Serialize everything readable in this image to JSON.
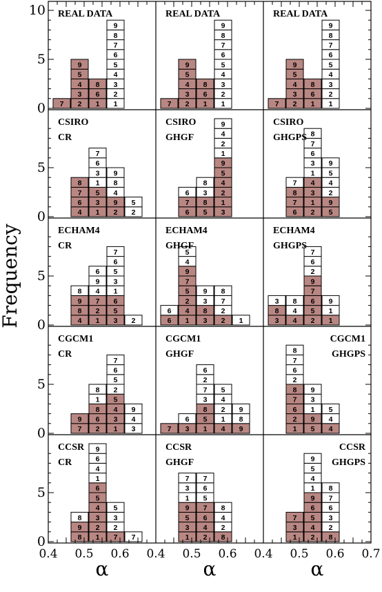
{
  "figure": {
    "ylabel": "Frequency",
    "xlabel": "α",
    "colors": {
      "shaded": "#b98783",
      "unshaded": "#ffffff",
      "stroke": "#000000"
    }
  },
  "chart_data": {
    "type": "histogram-grid",
    "xlim": [
      0.4,
      0.7
    ],
    "x_ticks": [
      "0.4",
      "0.5",
      "0.6",
      "0.4",
      "0.5",
      "0.6",
      "0.4",
      "0.5",
      "0.6",
      "0.7"
    ],
    "y_ticks_top": [
      "10",
      "5",
      "0"
    ],
    "y_ticks": [
      "5",
      "0"
    ],
    "bin_centers": [
      0.4375,
      0.4875,
      0.5375,
      0.5875,
      0.6375,
      0.6875
    ],
    "panels": [
      {
        "row": 0,
        "col": 0,
        "label": [
          "REAL DATA"
        ],
        "label_pos": "top-left",
        "columns": [
          {
            "bin": 0,
            "shaded": [
              "7"
            ],
            "unshaded": []
          },
          {
            "bin": 1,
            "shaded": [
              "2",
              "3",
              "4",
              "5",
              "9"
            ],
            "unshaded": []
          },
          {
            "bin": 2,
            "shaded": [
              "1",
              "6",
              "8"
            ],
            "unshaded": []
          },
          {
            "bin": 3,
            "shaded": [],
            "unshaded": [
              "1",
              "2",
              "3",
              "4",
              "5",
              "6",
              "7",
              "8",
              "9"
            ]
          }
        ]
      },
      {
        "row": 0,
        "col": 1,
        "label": [
          "REAL DATA"
        ],
        "label_pos": "top-left",
        "columns": [
          {
            "bin": 0,
            "shaded": [
              "7"
            ],
            "unshaded": []
          },
          {
            "bin": 1,
            "shaded": [
              "2",
              "3",
              "4",
              "5",
              "9"
            ],
            "unshaded": []
          },
          {
            "bin": 2,
            "shaded": [
              "1",
              "6",
              "8"
            ],
            "unshaded": []
          },
          {
            "bin": 3,
            "shaded": [],
            "unshaded": [
              "1",
              "2",
              "3",
              "4",
              "5",
              "6",
              "7",
              "8",
              "9"
            ]
          }
        ]
      },
      {
        "row": 0,
        "col": 2,
        "label": [
          "REAL DATA"
        ],
        "label_pos": "top-left",
        "columns": [
          {
            "bin": 0,
            "shaded": [
              "7"
            ],
            "unshaded": []
          },
          {
            "bin": 1,
            "shaded": [
              "2",
              "3",
              "4",
              "5",
              "9"
            ],
            "unshaded": []
          },
          {
            "bin": 2,
            "shaded": [
              "1",
              "6",
              "8"
            ],
            "unshaded": []
          },
          {
            "bin": 3,
            "shaded": [],
            "unshaded": [
              "1",
              "2",
              "3",
              "4",
              "5",
              "6",
              "7",
              "8",
              "9"
            ]
          }
        ]
      },
      {
        "row": 1,
        "col": 0,
        "label": [
          "CSIRO",
          "CR"
        ],
        "label_pos": "top-left",
        "columns": [
          {
            "bin": 1,
            "shaded": [
              "4",
              "6",
              "7",
              "8"
            ],
            "unshaded": []
          },
          {
            "bin": 2,
            "shaded": [
              "1",
              "3",
              "5"
            ],
            "unshaded": [
              "1",
              "3",
              "6",
              "7"
            ]
          },
          {
            "bin": 3,
            "shaded": [
              "2",
              "9"
            ],
            "unshaded": [
              "4",
              "8",
              "9"
            ]
          },
          {
            "bin": 4,
            "shaded": [],
            "unshaded": [
              "2",
              "5"
            ]
          }
        ]
      },
      {
        "row": 1,
        "col": 1,
        "label": [
          "CSIRO",
          "GHGF"
        ],
        "label_pos": "top-left",
        "columns": [
          {
            "bin": 1,
            "shaded": [
              "6",
              "7"
            ],
            "unshaded": [
              "6"
            ]
          },
          {
            "bin": 2,
            "shaded": [
              "5",
              "8"
            ],
            "unshaded": [
              "3",
              "8"
            ]
          },
          {
            "bin": 3,
            "shaded": [
              "3",
              "1",
              "2",
              "4",
              "5",
              "9"
            ],
            "unshaded": [
              "1",
              "2",
              "4",
              "9"
            ]
          }
        ]
      },
      {
        "row": 1,
        "col": 2,
        "label": [
          "CSIRO",
          "GHGPS"
        ],
        "label_pos": "top-left",
        "columns": [
          {
            "bin": 1,
            "shaded": [
              "6",
              "7",
              "8"
            ],
            "unshaded": [
              "7"
            ]
          },
          {
            "bin": 2,
            "shaded": [
              "2",
              "1",
              "3",
              "4"
            ],
            "unshaded": [
              "1",
              "3",
              "6",
              "7",
              "8"
            ]
          },
          {
            "bin": 3,
            "shaded": [
              "5",
              "9"
            ],
            "unshaded": [
              "2",
              "4",
              "5",
              "9"
            ]
          }
        ]
      },
      {
        "row": 2,
        "col": 0,
        "label": [
          "ECHAM4",
          "CR"
        ],
        "label_pos": "top-left",
        "columns": [
          {
            "bin": 1,
            "shaded": [
              "4",
              "8",
              "9"
            ],
            "unshaded": [
              "8"
            ]
          },
          {
            "bin": 2,
            "shaded": [
              "1",
              "2",
              "7"
            ],
            "unshaded": [
              "4",
              "9",
              "6"
            ]
          },
          {
            "bin": 3,
            "shaded": [
              "3",
              "5",
              "6"
            ],
            "unshaded": [
              "1",
              "3",
              "5",
              "6",
              "7"
            ]
          },
          {
            "bin": 4,
            "shaded": [],
            "unshaded": [
              "2"
            ]
          }
        ]
      },
      {
        "row": 2,
        "col": 1,
        "label": [
          "ECHAM4",
          "GHGF"
        ],
        "label_pos": "top-left",
        "columns": [
          {
            "bin": 0,
            "shaded": [
              "6"
            ],
            "unshaded": [
              "6"
            ]
          },
          {
            "bin": 1,
            "shaded": [
              "1",
              "4",
              "2",
              "5",
              "7",
              "9"
            ],
            "unshaded": [
              "4",
              "5"
            ]
          },
          {
            "bin": 2,
            "shaded": [
              "3",
              "8"
            ],
            "unshaded": [
              "3",
              "9"
            ]
          },
          {
            "bin": 3,
            "shaded": [
              "2"
            ],
            "unshaded": [
              "2",
              "7",
              "8"
            ]
          },
          {
            "bin": 4,
            "shaded": [],
            "unshaded": [
              "1"
            ]
          }
        ]
      },
      {
        "row": 2,
        "col": 2,
        "label": [
          "ECHAM4",
          "GHGPS"
        ],
        "label_pos": "top-left",
        "columns": [
          {
            "bin": 0,
            "shaded": [
              "3",
              "8"
            ],
            "unshaded": [
              "3"
            ]
          },
          {
            "bin": 1,
            "shaded": [
              "4"
            ],
            "unshaded": [
              "4",
              "8"
            ]
          },
          {
            "bin": 2,
            "shaded": [
              "2",
              "5",
              "6",
              "7",
              "9"
            ],
            "unshaded": [
              "2",
              "6",
              "7"
            ]
          },
          {
            "bin": 3,
            "shaded": [
              "1"
            ],
            "unshaded": [
              "1",
              "9"
            ]
          }
        ]
      },
      {
        "row": 3,
        "col": 0,
        "label": [
          "CGCM1",
          "CR"
        ],
        "label_pos": "top-left",
        "columns": [
          {
            "bin": 1,
            "shaded": [
              "7",
              "9"
            ],
            "unshaded": []
          },
          {
            "bin": 2,
            "shaded": [
              "2",
              "6",
              "8"
            ],
            "unshaded": [
              "1",
              "8"
            ]
          },
          {
            "bin": 3,
            "shaded": [
              "1",
              "3",
              "4",
              "5"
            ],
            "unshaded": [
              "2",
              "5",
              "6",
              "7"
            ]
          },
          {
            "bin": 4,
            "shaded": [],
            "unshaded": [
              "3",
              "4",
              "9"
            ]
          }
        ]
      },
      {
        "row": 3,
        "col": 1,
        "label": [
          "CGCM1",
          "GHGF"
        ],
        "label_pos": "top-left",
        "columns": [
          {
            "bin": 0,
            "shaded": [
              "7"
            ],
            "unshaded": []
          },
          {
            "bin": 1,
            "shaded": [
              "3"
            ],
            "unshaded": [
              "6"
            ]
          },
          {
            "bin": 2,
            "shaded": [
              "1",
              "5",
              "8"
            ],
            "unshaded": [
              "3",
              "7",
              "2",
              "6"
            ]
          },
          {
            "bin": 3,
            "shaded": [
              "4"
            ],
            "unshaded": [
              "1",
              "2",
              "4",
              "5"
            ]
          },
          {
            "bin": 4,
            "shaded": [
              "9"
            ],
            "unshaded": [
              "8",
              "9"
            ]
          }
        ]
      },
      {
        "row": 3,
        "col": 2,
        "label": [
          "CGCM1",
          "GHGPS"
        ],
        "label_pos": "top-right",
        "columns": [
          {
            "bin": 1,
            "shaded": [
              "1",
              "2",
              "6",
              "7",
              "8"
            ],
            "unshaded": [
              "2",
              "6",
              "7",
              "8"
            ]
          },
          {
            "bin": 2,
            "shaded": [
              "5",
              "9"
            ],
            "unshaded": [
              "1",
              "3",
              "9"
            ]
          },
          {
            "bin": 3,
            "shaded": [
              "4"
            ],
            "unshaded": [
              "4",
              "5"
            ]
          }
        ]
      },
      {
        "row": 4,
        "col": 0,
        "label": [
          "CCSR",
          "CR"
        ],
        "label_pos": "top-left",
        "columns": [
          {
            "bin": 1,
            "shaded": [
              "8",
              "9"
            ],
            "unshaded": [
              "8"
            ]
          },
          {
            "bin": 2,
            "shaded": [
              "1",
              "2",
              "3",
              "4",
              "5",
              "6"
            ],
            "unshaded": [
              "1",
              "4",
              "6",
              "9"
            ]
          },
          {
            "bin": 3,
            "shaded": [
              "7"
            ],
            "unshaded": [
              "2",
              "3",
              "5"
            ]
          },
          {
            "bin": 4,
            "shaded": [],
            "unshaded": [
              "7"
            ]
          }
        ]
      },
      {
        "row": 4,
        "col": 1,
        "label": [
          "CCSR",
          "GHGF"
        ],
        "label_pos": "top-left",
        "columns": [
          {
            "bin": 1,
            "shaded": [
              "1",
              "3",
              "5",
              "9"
            ],
            "unshaded": [
              "1",
              "3",
              "7"
            ]
          },
          {
            "bin": 2,
            "shaded": [
              "2",
              "4",
              "6",
              "7"
            ],
            "unshaded": [
              "5",
              "6",
              "7"
            ]
          },
          {
            "bin": 3,
            "shaded": [
              "8"
            ],
            "unshaded": [
              "2",
              "4",
              "8"
            ]
          }
        ]
      },
      {
        "row": 4,
        "col": 2,
        "label": [
          "CCSR",
          "GHGPS"
        ],
        "label_pos": "top-right",
        "columns": [
          {
            "bin": 1,
            "shaded": [
              "1",
              "3",
              "7"
            ],
            "unshaded": []
          },
          {
            "bin": 2,
            "shaded": [
              "2",
              "4",
              "5",
              "6",
              "9"
            ],
            "unshaded": [
              "1",
              "4",
              "5",
              "9"
            ]
          },
          {
            "bin": 3,
            "shaded": [
              "8"
            ],
            "unshaded": [
              "2",
              "3",
              "6",
              "7",
              "8"
            ]
          }
        ]
      }
    ]
  }
}
